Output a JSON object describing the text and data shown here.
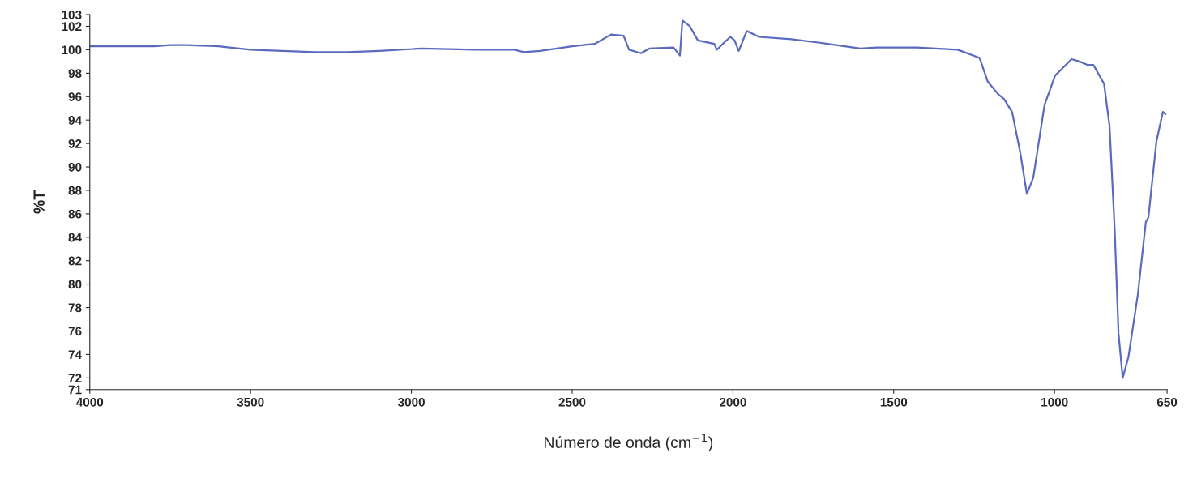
{
  "chart_data": {
    "type": "line",
    "xlabel": "Número de onda (cm$^{−1}$)",
    "ylabel": "%T",
    "xlim": [
      4000,
      650
    ],
    "xticks": [
      4000,
      3500,
      3000,
      2500,
      2000,
      1500,
      1000,
      650
    ],
    "ylim": [
      71,
      103
    ],
    "yticks": [
      71,
      72,
      74,
      76,
      78,
      80,
      82,
      84,
      86,
      88,
      90,
      92,
      94,
      96,
      98,
      100,
      102,
      103
    ],
    "grid": false,
    "legend": false,
    "marker": "none",
    "line_style": "solid",
    "series": [
      {
        "color": "#5a6abf",
        "x": [
          4000,
          3900,
          3800,
          3750,
          3700,
          3600,
          3500,
          3400,
          3300,
          3200,
          3100,
          2970,
          2800,
          2680,
          2650,
          2600,
          2500,
          2430,
          2379,
          2340,
          2323,
          2286,
          2260,
          2185,
          2165,
          2157,
          2134,
          2109,
          2058,
          2050,
          2028,
          2008,
          1995,
          1982,
          1957,
          1919,
          1818,
          1730,
          1604,
          1553,
          1427,
          1301,
          1233,
          1208,
          1175,
          1157,
          1132,
          1107,
          1086,
          1066,
          1031,
          998,
          947,
          922,
          897,
          879,
          846,
          829,
          813,
          801,
          788,
          770,
          741,
          716,
          708,
          683,
          663,
          655
        ],
        "values": [
          100.3,
          100.3,
          100.3,
          100.4,
          100.4,
          100.3,
          100.0,
          99.9,
          99.8,
          99.8,
          99.9,
          100.1,
          100.0,
          100.0,
          99.8,
          99.9,
          100.3,
          100.5,
          101.3,
          101.2,
          100.0,
          99.7,
          100.1,
          100.2,
          99.5,
          102.5,
          102.0,
          100.8,
          100.5,
          100.0,
          100.6,
          101.1,
          100.8,
          99.9,
          101.6,
          101.1,
          100.9,
          100.6,
          100.1,
          100.2,
          100.2,
          100.0,
          99.3,
          97.3,
          96.2,
          95.8,
          94.7,
          91.3,
          87.7,
          89.1,
          95.3,
          97.8,
          99.2,
          99.0,
          98.7,
          98.7,
          97.1,
          93.5,
          84.7,
          75.8,
          72.0,
          73.8,
          79.1,
          85.3,
          85.7,
          92.2,
          94.7,
          94.5
        ]
      }
    ]
  }
}
